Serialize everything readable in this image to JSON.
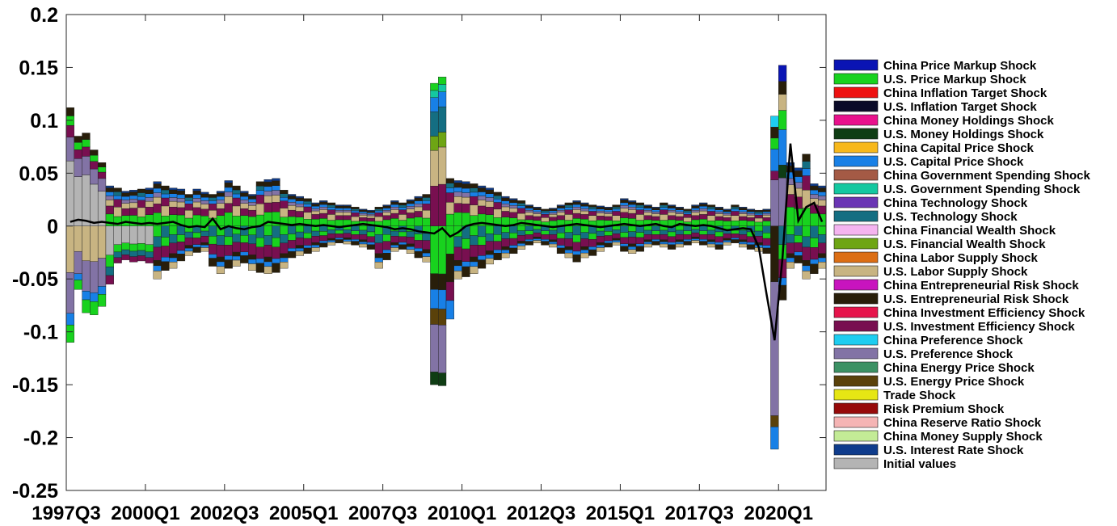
{
  "chart_data": {
    "type": "bar",
    "stacked": true,
    "title": "",
    "xlabel": "",
    "ylabel": "",
    "ylim": [
      -0.25,
      0.2
    ],
    "y_ticks": [
      "0.2",
      "0.15",
      "0.1",
      "0.05",
      "0",
      "-0.05",
      "-0.1",
      "-0.15",
      "-0.2",
      "-0.25"
    ],
    "y_tick_values": [
      0.2,
      0.15,
      0.1,
      0.05,
      0,
      -0.05,
      -0.1,
      -0.15,
      -0.2,
      -0.25
    ],
    "x_ticks": [
      "1997Q3",
      "2000Q1",
      "2002Q3",
      "2005Q1",
      "2007Q3",
      "2010Q1",
      "2012Q3",
      "2015Q1",
      "2017Q3",
      "2020Q1"
    ],
    "x_tick_indices": [
      0,
      10,
      20,
      30,
      40,
      50,
      60,
      70,
      80,
      90
    ],
    "n_periods": 96,
    "grid": false,
    "legend_position": "right",
    "legend": [
      {
        "name": "China Price Markup Shock",
        "color": "#0a14b4"
      },
      {
        "name": "U.S. Price Markup Shock",
        "color": "#18d21e"
      },
      {
        "name": "China Inflation Target Shock",
        "color": "#ee1111"
      },
      {
        "name": "U.S. Inflation Target Shock",
        "color": "#0a0a28"
      },
      {
        "name": "China Money Holdings Shock",
        "color": "#e8128c"
      },
      {
        "name": "U.S. Money Holdings Shock",
        "color": "#0f3d14"
      },
      {
        "name": "China Capital Price Shock",
        "color": "#f7b81c"
      },
      {
        "name": "U.S. Capital Price Shock",
        "color": "#1880e6"
      },
      {
        "name": "China Government Spending Shock",
        "color": "#a45a45"
      },
      {
        "name": "U.S. Government Spending Shock",
        "color": "#14c8a0"
      },
      {
        "name": "China Technology Shock",
        "color": "#6a35b4"
      },
      {
        "name": "U.S. Technology Shock",
        "color": "#146e82"
      },
      {
        "name": "China Financial Wealth Shock",
        "color": "#f5b4f0"
      },
      {
        "name": "U.S. Financial Wealth Shock",
        "color": "#6ea514"
      },
      {
        "name": "China Labor Supply Shock",
        "color": "#dc6e14"
      },
      {
        "name": "U.S. Labor Supply Shock",
        "color": "#c8b482"
      },
      {
        "name": "China Entrepreneurial Risk Shock",
        "color": "#c814be"
      },
      {
        "name": "U.S. Entrepreneurial Risk Shock",
        "color": "#281e0a"
      },
      {
        "name": "China Investment Efficiency Shock",
        "color": "#e6144b"
      },
      {
        "name": "U.S. Investment Efficiency Shock",
        "color": "#780f50"
      },
      {
        "name": "China Preference Shock",
        "color": "#1ecdf0"
      },
      {
        "name": "U.S. Preference Shock",
        "color": "#8273a5"
      },
      {
        "name": "China Energy Price Shock",
        "color": "#3c9164"
      },
      {
        "name": "U.S. Energy Price Shock",
        "color": "#5a410a"
      },
      {
        "name": "Trade Shock",
        "color": "#e6e614"
      },
      {
        "name": "Risk Premium Shock",
        "color": "#960a0a"
      },
      {
        "name": "China Reserve Ratio Shock",
        "color": "#f5b4b4"
      },
      {
        "name": "China Money Supply Shock",
        "color": "#c3eb96"
      },
      {
        "name": "U.S. Interest Rate Shock",
        "color": "#0f3c8c"
      },
      {
        "name": "Initial values",
        "color": "#b4b4b4"
      }
    ],
    "series_note_omitted": null,
    "line": {
      "name": "",
      "color": "#000000",
      "values": [
        0.004,
        0.006,
        0.005,
        0.003,
        0.004,
        0.003,
        0.002,
        0.004,
        0.003,
        0.002,
        0.003,
        0.002,
        0.003,
        0.004,
        0.001,
        -0.001,
        0.0,
        -0.001,
        0.007,
        -0.003,
        0.0,
        -0.002,
        -0.003,
        -0.001,
        0.0,
        0.004,
        0.003,
        0.002,
        0.001,
        0.002,
        0.001,
        0.0,
        0.001,
        0.0,
        -0.001,
        0.0,
        0.001,
        0.002,
        0.001,
        0.0,
        -0.001,
        -0.003,
        -0.002,
        -0.003,
        -0.005,
        -0.006,
        -0.007,
        -0.002,
        -0.01,
        -0.006,
        0.0,
        0.002,
        0.003,
        0.002,
        0.001,
        0.0,
        0.001,
        0.003,
        0.002,
        0.001,
        0.0,
        -0.001,
        0.0,
        0.001,
        0.002,
        0.001,
        0.0,
        -0.001,
        0.0,
        0.001,
        0.002,
        0.001,
        0.0,
        0.001,
        0.002,
        0.0,
        -0.001,
        0.002,
        0.001,
        0.0,
        0.001,
        0.0,
        -0.002,
        -0.004,
        -0.003,
        -0.002,
        -0.003,
        -0.02,
        -0.065,
        -0.108,
        -0.03,
        0.078,
        0.005,
        0.018,
        0.022,
        0.004
      ]
    },
    "pos_totals": [
      0.112,
      0.085,
      0.088,
      0.072,
      0.06,
      0.038,
      0.036,
      0.033,
      0.034,
      0.035,
      0.036,
      0.042,
      0.038,
      0.036,
      0.035,
      0.03,
      0.035,
      0.032,
      0.03,
      0.033,
      0.043,
      0.038,
      0.033,
      0.03,
      0.042,
      0.044,
      0.045,
      0.034,
      0.03,
      0.028,
      0.026,
      0.022,
      0.024,
      0.022,
      0.02,
      0.02,
      0.018,
      0.016,
      0.015,
      0.018,
      0.02,
      0.024,
      0.022,
      0.025,
      0.028,
      0.03,
      0.135,
      0.141,
      0.045,
      0.043,
      0.042,
      0.04,
      0.038,
      0.036,
      0.032,
      0.028,
      0.026,
      0.024,
      0.02,
      0.018,
      0.016,
      0.017,
      0.02,
      0.022,
      0.024,
      0.022,
      0.02,
      0.019,
      0.018,
      0.02,
      0.026,
      0.024,
      0.022,
      0.02,
      0.018,
      0.022,
      0.02,
      0.018,
      0.016,
      0.02,
      0.022,
      0.02,
      0.018,
      0.016,
      0.02,
      0.018,
      0.016,
      0.015,
      0.016,
      0.104,
      0.152,
      0.06,
      0.055,
      0.068,
      0.04,
      0.038
    ],
    "neg_totals": [
      -0.11,
      -0.06,
      -0.082,
      -0.084,
      -0.076,
      -0.055,
      -0.035,
      -0.032,
      -0.034,
      -0.033,
      -0.035,
      -0.05,
      -0.042,
      -0.04,
      -0.033,
      -0.028,
      -0.025,
      -0.024,
      -0.038,
      -0.045,
      -0.04,
      -0.038,
      -0.035,
      -0.042,
      -0.044,
      -0.045,
      -0.044,
      -0.04,
      -0.03,
      -0.028,
      -0.026,
      -0.024,
      -0.02,
      -0.018,
      -0.016,
      -0.017,
      -0.018,
      -0.02,
      -0.022,
      -0.04,
      -0.032,
      -0.024,
      -0.022,
      -0.026,
      -0.03,
      -0.034,
      -0.15,
      -0.151,
      -0.088,
      -0.05,
      -0.048,
      -0.045,
      -0.04,
      -0.036,
      -0.032,
      -0.03,
      -0.026,
      -0.022,
      -0.018,
      -0.016,
      -0.018,
      -0.02,
      -0.026,
      -0.03,
      -0.034,
      -0.03,
      -0.028,
      -0.024,
      -0.02,
      -0.018,
      -0.024,
      -0.026,
      -0.024,
      -0.02,
      -0.018,
      -0.02,
      -0.022,
      -0.02,
      -0.018,
      -0.016,
      -0.018,
      -0.02,
      -0.022,
      -0.018,
      -0.016,
      -0.02,
      -0.022,
      -0.024,
      -0.026,
      -0.211,
      -0.07,
      -0.04,
      -0.035,
      -0.05,
      -0.045,
      -0.04
    ]
  }
}
